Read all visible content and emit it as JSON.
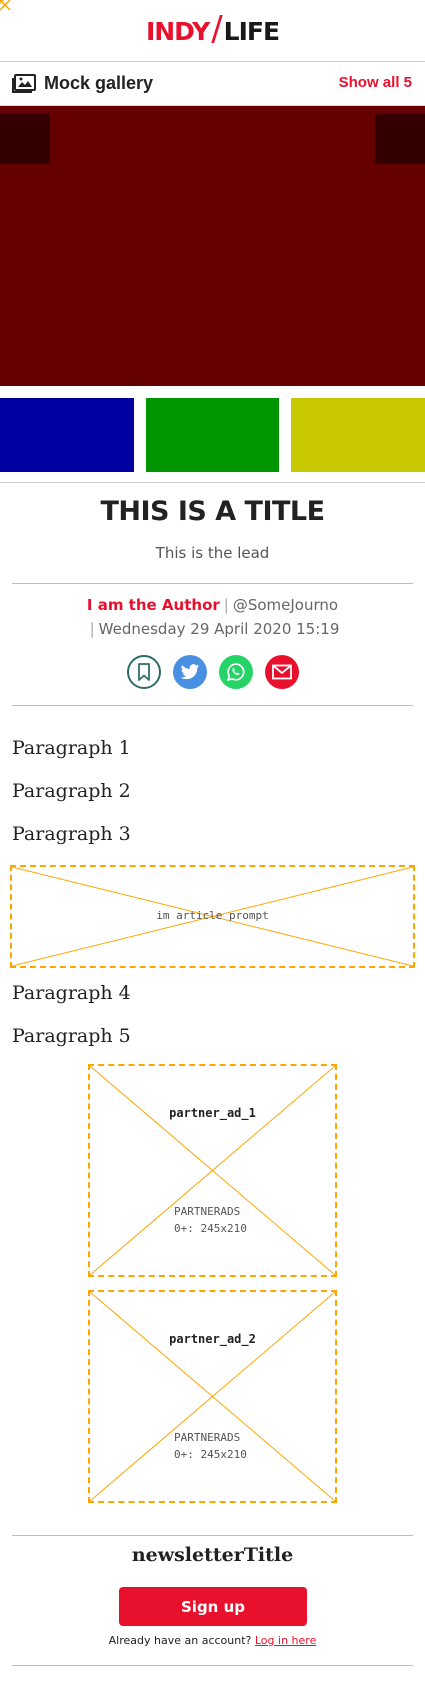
{
  "logo": {
    "part1": "INDY",
    "part2": "LIFE"
  },
  "gallery": {
    "title": "Mock gallery",
    "show_all": "Show all 5",
    "main_color": "#650000",
    "arrow_color": "#320000",
    "thumbs": [
      "#0000a0",
      "#009600",
      "#c8c800"
    ]
  },
  "article": {
    "title": "THIS IS A TITLE",
    "lead": "This is the lead",
    "author": "I am the Author",
    "handle": "@SomeJourno",
    "date": "Wednesday 29 April 2020 15:19",
    "separator": "|",
    "share_icons": [
      "bookmark-icon",
      "twitter-icon",
      "whatsapp-icon",
      "email-icon"
    ],
    "paragraphs": [
      "Paragraph 1",
      "Paragraph 2",
      "Paragraph 3",
      "Paragraph 4",
      "Paragraph 5"
    ]
  },
  "placeholders": {
    "prompt": "im article prompt",
    "ads": [
      {
        "name": "partner_ad_1",
        "type": "PARTNERADS",
        "size": "0+: 245x210"
      },
      {
        "name": "partner_ad_2",
        "type": "PARTNERADS",
        "size": "0+: 245x210"
      }
    ]
  },
  "newsletter": {
    "title": "newsletterTitle",
    "button": "Sign up",
    "login_prompt": "Already have an account?",
    "login_link": "Log in here"
  },
  "colors": {
    "brand": "#e8112d",
    "placeholder_border": "#ffa500"
  }
}
